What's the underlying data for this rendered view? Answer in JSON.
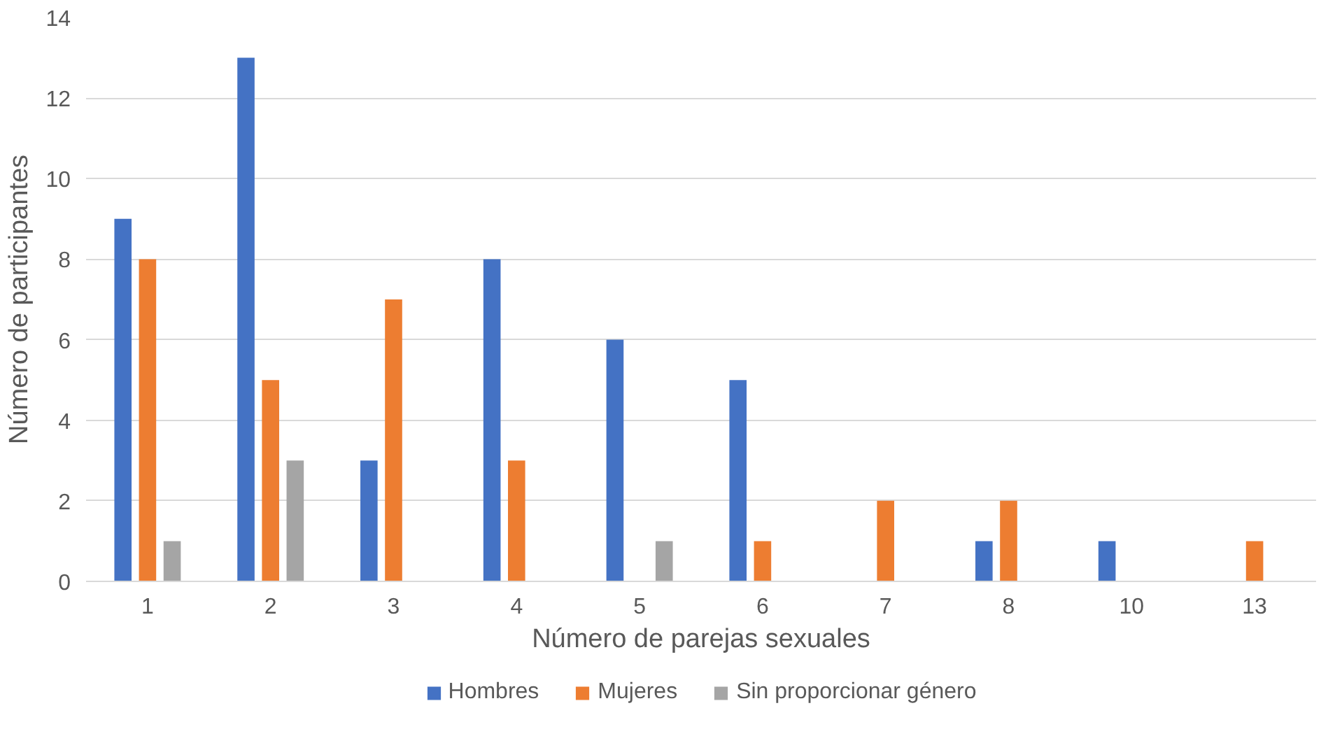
{
  "chart_data": {
    "type": "bar",
    "xlabel": "Número de parejas sexuales",
    "ylabel": "Número de participantes",
    "categories": [
      "1",
      "2",
      "3",
      "4",
      "5",
      "6",
      "7",
      "8",
      "10",
      "13"
    ],
    "series": [
      {
        "name": "Hombres",
        "color": "#4472c4",
        "values": [
          9,
          13,
          3,
          8,
          6,
          5,
          0,
          1,
          1,
          0
        ]
      },
      {
        "name": "Mujeres",
        "color": "#ed7d31",
        "values": [
          8,
          5,
          7,
          3,
          0,
          1,
          2,
          2,
          0,
          1
        ]
      },
      {
        "name": "Sin proporcionar género",
        "color": "#a5a5a5",
        "values": [
          1,
          3,
          0,
          0,
          1,
          0,
          0,
          0,
          0,
          0
        ]
      }
    ],
    "ylim": [
      0,
      14
    ],
    "yticks": [
      0,
      2,
      4,
      6,
      8,
      10,
      12,
      14
    ],
    "grid": "y",
    "legend": "bottom"
  }
}
